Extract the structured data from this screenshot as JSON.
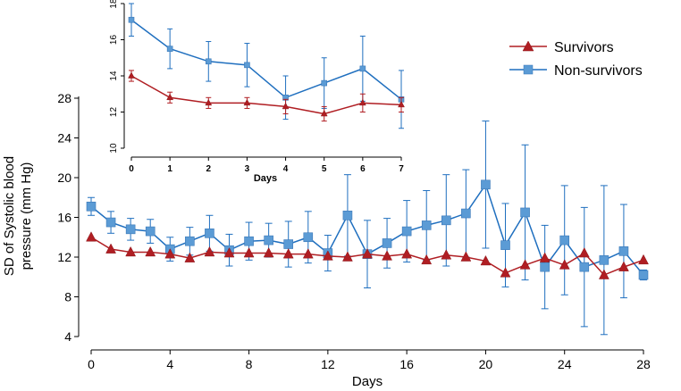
{
  "chart_data": {
    "type": "line",
    "legend": {
      "position": "top-right",
      "entries": [
        {
          "name": "Survivors",
          "marker": "triangle",
          "color": "#b01e23"
        },
        {
          "name": "Non-survivors",
          "marker": "square",
          "color": "#1f6fbf",
          "marker_color": "#5b9bd5"
        }
      ]
    },
    "main": {
      "xlabel": "Days",
      "ylabel_line1": "SD of Systolic blood",
      "ylabel_line2": "pressure (mm Hg)",
      "xlim": [
        0,
        28
      ],
      "ylim": [
        4,
        28
      ],
      "xticks": [
        0,
        4,
        8,
        12,
        16,
        20,
        24,
        28
      ],
      "yticks": [
        4,
        8,
        12,
        16,
        20,
        24,
        28
      ],
      "x": [
        0,
        1,
        2,
        3,
        4,
        5,
        6,
        7,
        8,
        9,
        10,
        11,
        12,
        13,
        14,
        15,
        16,
        17,
        18,
        19,
        20,
        21,
        22,
        23,
        24,
        25,
        26,
        27,
        28
      ],
      "series": [
        {
          "name": "Non-survivors",
          "values": [
            17.1,
            15.5,
            14.8,
            14.6,
            12.8,
            13.6,
            14.4,
            12.7,
            13.6,
            13.7,
            13.3,
            14.0,
            12.4,
            16.2,
            12.3,
            13.4,
            14.6,
            15.2,
            15.7,
            16.4,
            19.3,
            13.2,
            16.5,
            11.0,
            13.7,
            11.0,
            11.7,
            12.6,
            10.2
          ],
          "errors": [
            0.9,
            1.1,
            1.1,
            1.2,
            1.2,
            1.4,
            1.8,
            1.6,
            1.9,
            1.7,
            2.3,
            2.6,
            1.8,
            4.1,
            3.4,
            2.5,
            3.1,
            3.5,
            4.6,
            4.4,
            6.4,
            4.2,
            6.8,
            4.2,
            5.5,
            6.0,
            7.5,
            4.7,
            0.5
          ]
        },
        {
          "name": "Survivors",
          "values": [
            14.0,
            12.8,
            12.5,
            12.5,
            12.3,
            11.9,
            12.5,
            12.4,
            12.4,
            12.4,
            12.3,
            12.3,
            12.1,
            12.0,
            12.3,
            12.1,
            12.3,
            11.7,
            12.2,
            12.0,
            11.6,
            10.4,
            11.2,
            11.9,
            11.2,
            12.4,
            10.2,
            11.0,
            11.7
          ]
        }
      ]
    },
    "inset": {
      "xlabel": "Days",
      "xlim": [
        0,
        7
      ],
      "ylim": [
        10,
        18
      ],
      "xticks": [
        0,
        1,
        2,
        3,
        4,
        5,
        6,
        7
      ],
      "yticks": [
        10,
        12,
        14,
        16,
        18
      ],
      "x": [
        0,
        1,
        2,
        3,
        4,
        5,
        6,
        7
      ],
      "series": [
        {
          "name": "Non-survivors",
          "values": [
            17.1,
            15.5,
            14.8,
            14.6,
            12.8,
            13.6,
            14.4,
            12.7
          ],
          "errors": [
            0.9,
            1.1,
            1.1,
            1.2,
            1.2,
            1.4,
            1.8,
            1.6
          ]
        },
        {
          "name": "Survivors",
          "values": [
            14.0,
            12.8,
            12.5,
            12.5,
            12.3,
            11.9,
            12.5,
            12.4
          ],
          "errors": [
            0.3,
            0.3,
            0.3,
            0.3,
            0.4,
            0.4,
            0.5,
            0.4
          ]
        }
      ]
    }
  }
}
